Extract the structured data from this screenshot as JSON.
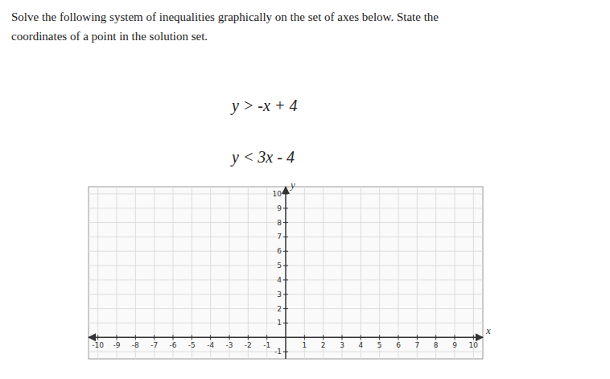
{
  "chart_data": {
    "type": "coordinate_plane",
    "title": [
      "Solve the following system of inequalities graphically on the set of axes below. State the",
      "coordinates of a point in the solution set."
    ],
    "annotations": [
      "y > -x + 4",
      "y < 3x - 4"
    ],
    "x_label": "x",
    "y_label": "y",
    "xlim": [
      -10.5,
      10.5
    ],
    "ylim": [
      -1.5,
      10.5
    ],
    "xticks": [
      -10,
      -9,
      -8,
      -7,
      -6,
      -5,
      -4,
      -3,
      -2,
      -1,
      1,
      2,
      3,
      4,
      5,
      6,
      7,
      8,
      9,
      10
    ],
    "yticks": [
      -1,
      1,
      2,
      3,
      4,
      5,
      6,
      7,
      8,
      9,
      10
    ],
    "grid": true
  }
}
